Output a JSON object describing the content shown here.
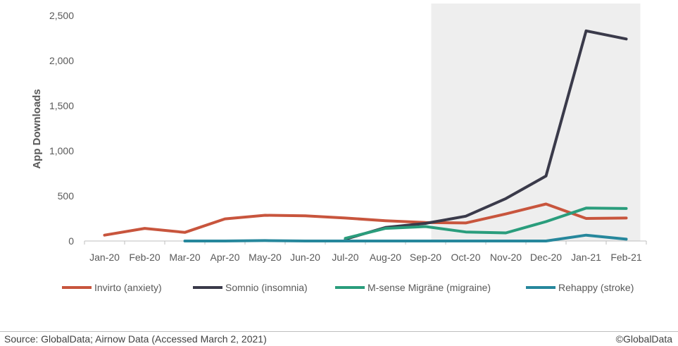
{
  "chart_data": {
    "type": "line",
    "ylabel": "App Downloads",
    "ylim": [
      0,
      2500
    ],
    "yticks": [
      0,
      500,
      1000,
      1500,
      2000,
      2500
    ],
    "ytick_labels": [
      "0",
      "500",
      "1,000",
      "1,500",
      "2,000",
      "2,500"
    ],
    "categories": [
      "Jan-20",
      "Feb-20",
      "Mar-20",
      "Apr-20",
      "May-20",
      "Jun-20",
      "Jul-20",
      "Aug-20",
      "Sep-20",
      "Oct-20",
      "Nov-20",
      "Dec-20",
      "Jan-21",
      "Feb-21"
    ],
    "shaded_range": [
      "Sep-20",
      "Feb-21"
    ],
    "grid": false,
    "legend_position": "bottom",
    "series": [
      {
        "name": "Invirto (anxiety)",
        "color": "#c8553d",
        "values": [
          65,
          140,
          95,
          245,
          285,
          280,
          255,
          225,
          205,
          200,
          300,
          410,
          250,
          255
        ]
      },
      {
        "name": "Somnio (insomnia)",
        "color": "#3a3a4a",
        "values": [
          null,
          null,
          null,
          null,
          null,
          null,
          20,
          150,
          195,
          275,
          470,
          720,
          2330,
          2240
        ]
      },
      {
        "name": "M-sense Migräne (migraine)",
        "color": "#2a9d7c",
        "values": [
          null,
          null,
          null,
          null,
          null,
          null,
          30,
          140,
          160,
          100,
          90,
          215,
          365,
          360
        ]
      },
      {
        "name": "Rehappy (stroke)",
        "color": "#26879c",
        "values": [
          null,
          null,
          0,
          0,
          5,
          0,
          0,
          0,
          0,
          0,
          0,
          0,
          65,
          20
        ]
      }
    ]
  },
  "footer": {
    "source": "Source: GlobalData; Airnow Data (Accessed March 2, 2021)",
    "copyright": "©GlobalData"
  }
}
